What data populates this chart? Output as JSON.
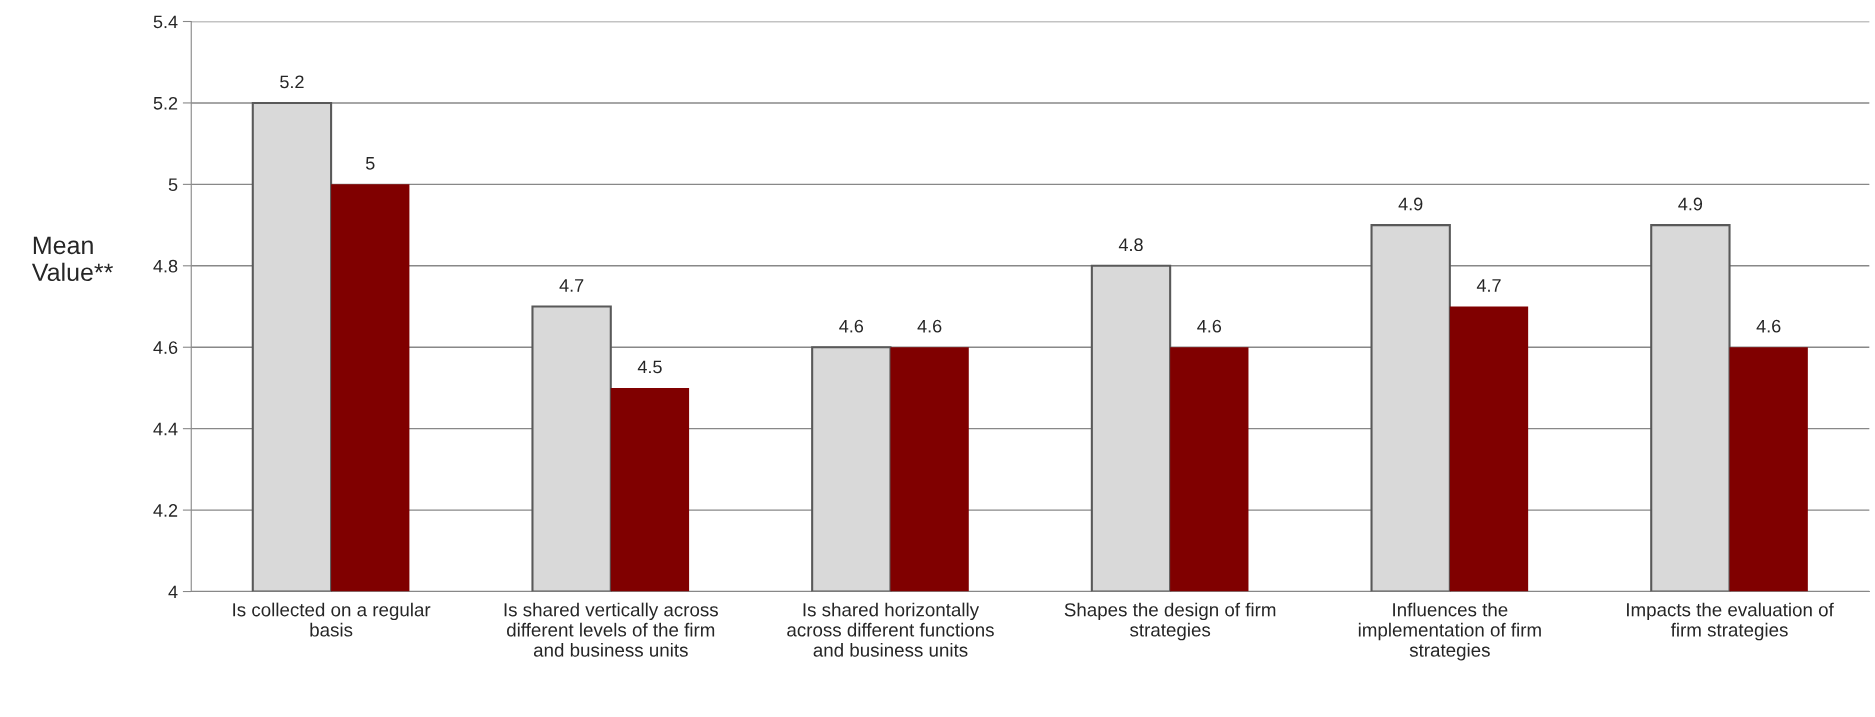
{
  "chart_data": {
    "type": "bar",
    "ylabel": "Mean Value**",
    "categories": [
      "Is collected on a regular\nbasis",
      "Is shared vertically across\ndifferent levels of the firm\nand business units",
      "Is shared horizontally\nacross different functions\nand business units",
      "Shapes the design of firm\nstrategies",
      "Influences the\nimplementation of firm\nstrategies",
      "Impacts the evaluation of\nfirm strategies"
    ],
    "series": [
      {
        "color": "#d9d9d9",
        "values": [
          5.2,
          4.7,
          4.6,
          4.8,
          4.9,
          4.9
        ]
      },
      {
        "color": "#800000",
        "values": [
          5,
          4.5,
          4.6,
          4.6,
          4.7,
          4.6
        ]
      }
    ],
    "ylim": [
      4,
      5.4
    ],
    "yticks": [
      4,
      4.2,
      4.4,
      4.6,
      4.8,
      5,
      5.2,
      5.4
    ],
    "grid": "y",
    "data_labels": true,
    "legend": false
  }
}
